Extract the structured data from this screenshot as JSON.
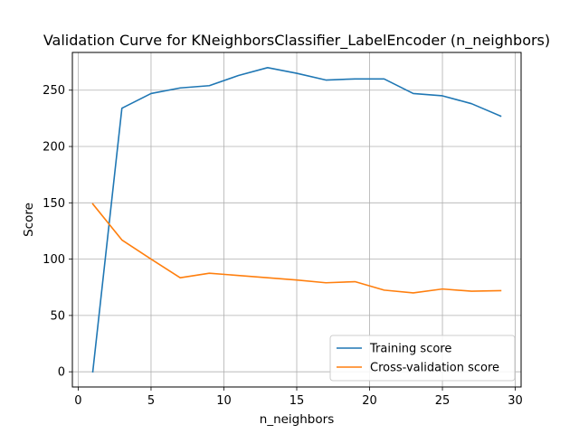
{
  "chart_data": {
    "type": "line",
    "title": "Validation Curve for KNeighborsClassifier_LabelEncoder (n_neighbors)",
    "xlabel": "n_neighbors",
    "ylabel": "Score",
    "xlim": [
      -0.4,
      30.4
    ],
    "ylim": [
      -13.5,
      283.5
    ],
    "xticks": [
      0,
      5,
      10,
      15,
      20,
      25,
      30
    ],
    "yticks": [
      0,
      50,
      100,
      150,
      200,
      250
    ],
    "grid": true,
    "legend_position": "lower right",
    "x": [
      1,
      3,
      5,
      7,
      9,
      11,
      13,
      15,
      17,
      19,
      21,
      23,
      25,
      27,
      29
    ],
    "series": [
      {
        "name": "Training score",
        "color": "#1f77b4",
        "values": [
          0,
          234,
          247,
          252,
          254,
          263,
          270,
          265,
          259,
          260,
          260,
          247,
          245,
          238,
          227
        ]
      },
      {
        "name": "Cross-validation score",
        "color": "#ff7f0e",
        "values": [
          149,
          117,
          100,
          83.5,
          87.5,
          85.5,
          83.5,
          81.5,
          79,
          80,
          72.5,
          70,
          73.5,
          71.5,
          72
        ]
      }
    ]
  }
}
